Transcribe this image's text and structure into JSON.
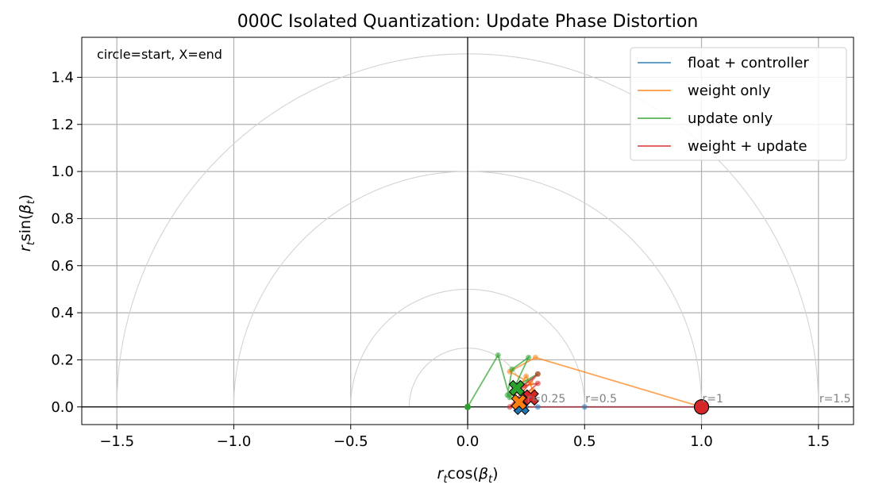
{
  "chart_data": {
    "type": "line",
    "title": "000C Isolated Quantization: Update Phase Distortion",
    "xlabel": "r_t cos(β_t)",
    "ylabel": "r_t sin(β_t)",
    "xlim": [
      -1.65,
      1.65
    ],
    "ylim": [
      -0.075,
      1.57
    ],
    "xticks": [
      -1.5,
      -1.0,
      -0.5,
      0.0,
      0.5,
      1.0,
      1.5
    ],
    "xtick_labels": [
      "−1.5",
      "−1.0",
      "−0.5",
      "0.0",
      "0.5",
      "1.0",
      "1.5"
    ],
    "yticks": [
      0.0,
      0.2,
      0.4,
      0.6,
      0.8,
      1.0,
      1.2,
      1.4
    ],
    "ytick_labels": [
      "0.0",
      "0.2",
      "0.4",
      "0.6",
      "0.8",
      "1.0",
      "1.2",
      "1.4"
    ],
    "grid": true,
    "legend_position": "upper right",
    "annotation": "circle=start, X=end",
    "reference_circles": [
      {
        "r": 0.25,
        "label": "r=0.25"
      },
      {
        "r": 0.5,
        "label": "r=0.5"
      },
      {
        "r": 1.0,
        "label": "r=1"
      },
      {
        "r": 1.5,
        "label": "r=1.5"
      }
    ],
    "series": [
      {
        "name": "float + controller",
        "color": "#1f77b4",
        "points": [
          [
            1.0,
            0.0
          ],
          [
            0.5,
            0.0
          ],
          [
            0.3,
            0.0
          ],
          [
            0.25,
            0.0
          ],
          [
            0.23,
            0.0
          ]
        ]
      },
      {
        "name": "weight only",
        "color": "#ff7f0e",
        "points": [
          [
            1.0,
            0.0
          ],
          [
            0.29,
            0.21
          ],
          [
            0.18,
            0.15
          ],
          [
            0.27,
            0.1
          ],
          [
            0.2,
            0.06
          ],
          [
            0.25,
            0.13
          ],
          [
            0.28,
            0.07
          ],
          [
            0.22,
            0.02
          ]
        ]
      },
      {
        "name": "update only",
        "color": "#2ca02c",
        "points": [
          [
            0.0,
            0.0
          ],
          [
            0.13,
            0.22
          ],
          [
            0.18,
            0.04
          ],
          [
            0.26,
            0.21
          ],
          [
            0.19,
            0.16
          ],
          [
            0.17,
            0.05
          ],
          [
            0.21,
            0.09
          ],
          [
            0.3,
            0.14
          ],
          [
            0.19,
            0.06
          ],
          [
            0.21,
            0.08
          ]
        ]
      },
      {
        "name": "weight + update",
        "color": "#d62728",
        "points": [
          [
            1.0,
            0.0
          ],
          [
            0.18,
            0.0
          ],
          [
            0.3,
            0.14
          ],
          [
            0.24,
            0.09
          ],
          [
            0.3,
            0.1
          ],
          [
            0.22,
            0.03
          ],
          [
            0.27,
            0.04
          ]
        ]
      }
    ]
  }
}
